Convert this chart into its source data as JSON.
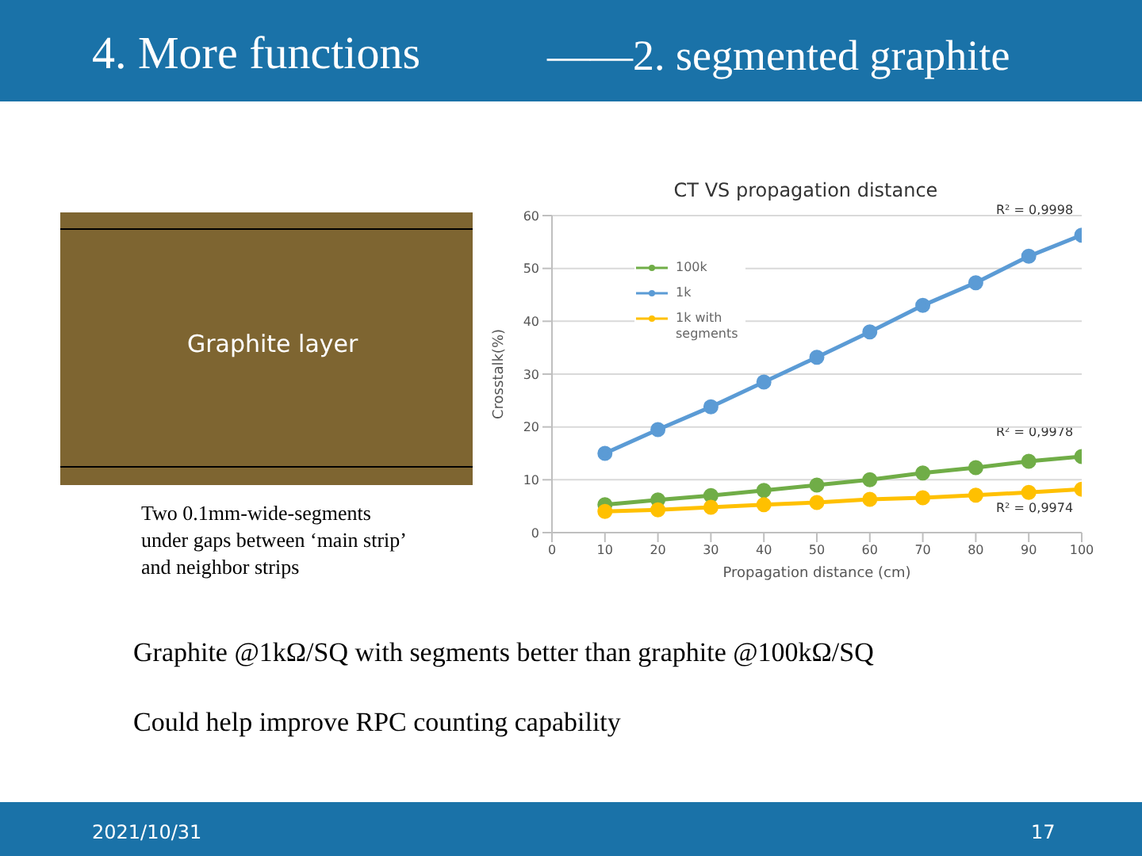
{
  "chart_data": {
    "type": "line",
    "title": "CT VS propagation distance",
    "xlabel": "Propagation distance (cm)",
    "ylabel": "Crosstalk(%)",
    "x": [
      10,
      20,
      30,
      40,
      50,
      60,
      70,
      80,
      90,
      100
    ],
    "series": [
      {
        "name": "100k",
        "color": "#70ad47",
        "values": [
          5.3,
          6.2,
          7.0,
          8.0,
          9.0,
          10.0,
          11.3,
          12.3,
          13.5,
          14.4
        ]
      },
      {
        "name": "1k",
        "color": "#5b9bd5",
        "values": [
          15.0,
          19.5,
          23.8,
          28.5,
          33.2,
          38.0,
          43.0,
          47.3,
          52.3,
          56.3
        ]
      },
      {
        "name": "1k with segments",
        "color": "#ffc000",
        "values": [
          4.0,
          4.3,
          4.8,
          5.3,
          5.7,
          6.3,
          6.6,
          7.1,
          7.6,
          8.2
        ]
      }
    ],
    "xlim": [
      0,
      100
    ],
    "xticks": [
      0,
      10,
      20,
      30,
      40,
      50,
      60,
      70,
      80,
      90,
      100
    ],
    "ylim": [
      0,
      60
    ],
    "yticks": [
      0,
      10,
      20,
      30,
      40,
      50,
      60
    ],
    "grid": "y",
    "legend": "top left",
    "marker": "circle",
    "line_style": "solid",
    "annotations": [
      "4. More functions",
      "——2. segmented graphite",
      "Graphite layer",
      "Two 0.1mm-wide-segments under gaps between ‘main strip’ and neighbor strips",
      "Graphite @1kΩ/SQ with segments better than graphite @100kΩ/SQ",
      "Could help improve RPC counting capability",
      "2021/10/31",
      "17",
      "R² = 0,9998",
      "R² = 0,9978",
      "R² = 0,9974"
    ]
  }
}
